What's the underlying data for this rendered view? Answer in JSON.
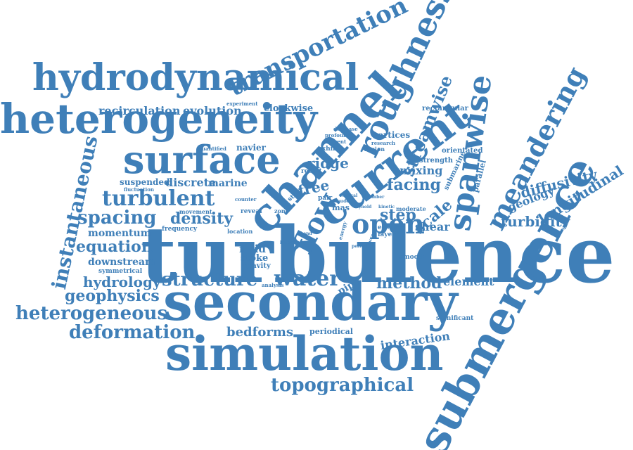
{
  "theme": {
    "word_color": "#3f7fb8",
    "background": "#ffffff"
  },
  "words": {
    "turbulence": "turbulence",
    "secondary": "secondary",
    "simulation": "simulation",
    "submergence": "submergence",
    "heterogeneity": "heterogeneity",
    "hydrodynamical": "hydrodynamical",
    "channel": "channel",
    "current": "current",
    "surface": "surface",
    "roughness": "roughness",
    "spanwise": "spanwise",
    "meandering": "meandering",
    "transportation": "transportation",
    "instantaneous": "instantaneous",
    "streamwise": "streamwise",
    "flow": "flow",
    "open": "open",
    "turbulent": "turbulent",
    "structure": "structure",
    "water": "water",
    "method": "method",
    "topographical": "topographical",
    "heterogeneous": "heterogeneous",
    "deformation": "deformation",
    "geophysics": "geophysics",
    "hydrology": "hydrology",
    "equation": "equation",
    "spacing": "spacing",
    "density": "density",
    "longitudinal": "longitudinal",
    "diffusivity": "diffusivity",
    "turbidity": "turbidity",
    "geology": "geology",
    "bedforms": "bedforms",
    "interaction": "interaction",
    "element": "element",
    "recirculation": "recirculation",
    "evolution": "evolution",
    "clockwise": "clockwise",
    "ridge": "ridge",
    "facing": "facing",
    "mixing": "mixing",
    "step": "step",
    "scale": "scale",
    "shear": "shear",
    "free": "free",
    "fluid": "fluid",
    "stoke": "stoke",
    "gravity": "gravity",
    "pipe": "pipe",
    "vortices": "vortices",
    "navier": "navier",
    "discrete": "discrete",
    "marine": "marine",
    "suspended": "suspended",
    "momentum": "momentum",
    "downstream": "downstream",
    "frequency": "frequency",
    "movement": "movement",
    "reveal": "reveal",
    "location": "location",
    "symmetrical": "symmetrical",
    "periodical": "periodical",
    "significant": "significant",
    "smooth": "smooth",
    "parallel": "parallel",
    "orientated": "orientated",
    "rectangular": "rectangular",
    "strength": "strength",
    "submarine": "submarine",
    "effect": "effect",
    "layer": "layer",
    "moderate": "moderate",
    "result": "result",
    "exhibit": "exhibit",
    "region": "region",
    "research": "research",
    "different": "different",
    "profound": "profound",
    "decrease": "decrease",
    "experiment": "experiment",
    "quantified": "quantified",
    "fluctuation": "fluctuation",
    "counter": "counter",
    "pair": "pair",
    "mas": "mas",
    "zone": "zone",
    "analysis": "analysis",
    "lateral": "lateral",
    "reynold": "reynold",
    "kinetic": "kinetic",
    "vertical": "vertical",
    "energy": "energy",
    "number": "number",
    "increase": "increase",
    "period": "period",
    "wave": "wave",
    "bend": "bend",
    "strip": "strip",
    "froude": "froude"
  }
}
